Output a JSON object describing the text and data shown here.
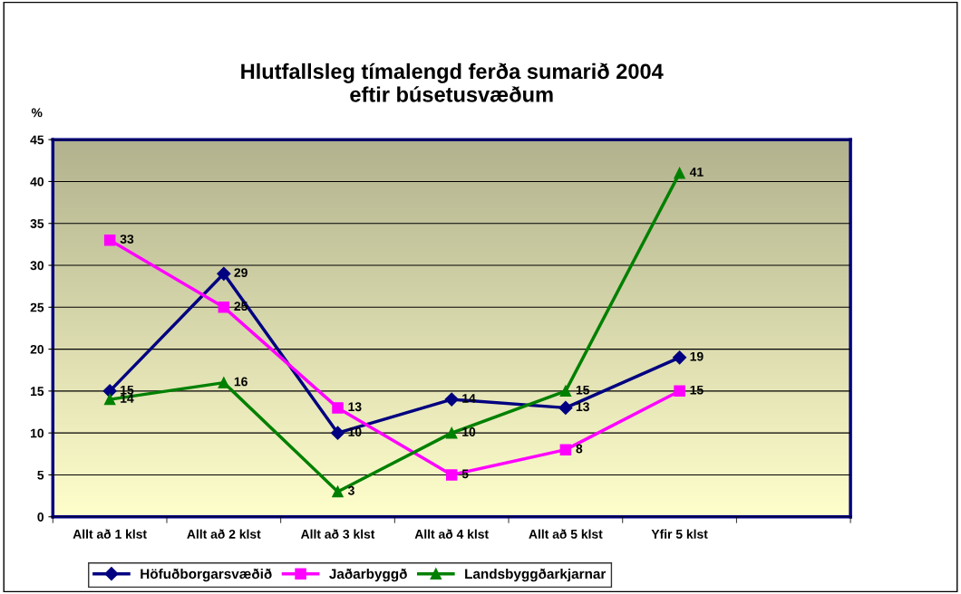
{
  "chart_data": {
    "type": "line",
    "title": "Hlutfallsleg tímalengd ferða sumarið 2004\neftir búsetusvæðum",
    "ylabel": "%",
    "categories": [
      "Allt að 1 klst",
      "Allt að 2 klst",
      "Allt að 3 klst",
      "Allt að 4 klst",
      "Allt að 5 klst",
      "Yfir 5 klst",
      null
    ],
    "series": [
      {
        "name": "Höfuðborgarsvæðið",
        "color": "#000080",
        "marker": "diamond",
        "values": [
          15,
          29,
          10,
          14,
          13,
          19,
          null
        ]
      },
      {
        "name": "Jaðarbyggð",
        "color": "#ff00ff",
        "marker": "square",
        "values": [
          33,
          25,
          13,
          5,
          8,
          15,
          null
        ]
      },
      {
        "name": "Landsbyggðarkjarnar",
        "color": "#008000",
        "marker": "triangle",
        "values": [
          14,
          16,
          3,
          10,
          15,
          41,
          null
        ]
      }
    ],
    "ylim": [
      0,
      45
    ],
    "yticks": [
      0,
      5,
      10,
      15,
      20,
      25,
      30,
      35,
      40,
      45
    ],
    "grid": "y",
    "legend": "bottom",
    "data_labels": true,
    "line_style": "solid"
  }
}
